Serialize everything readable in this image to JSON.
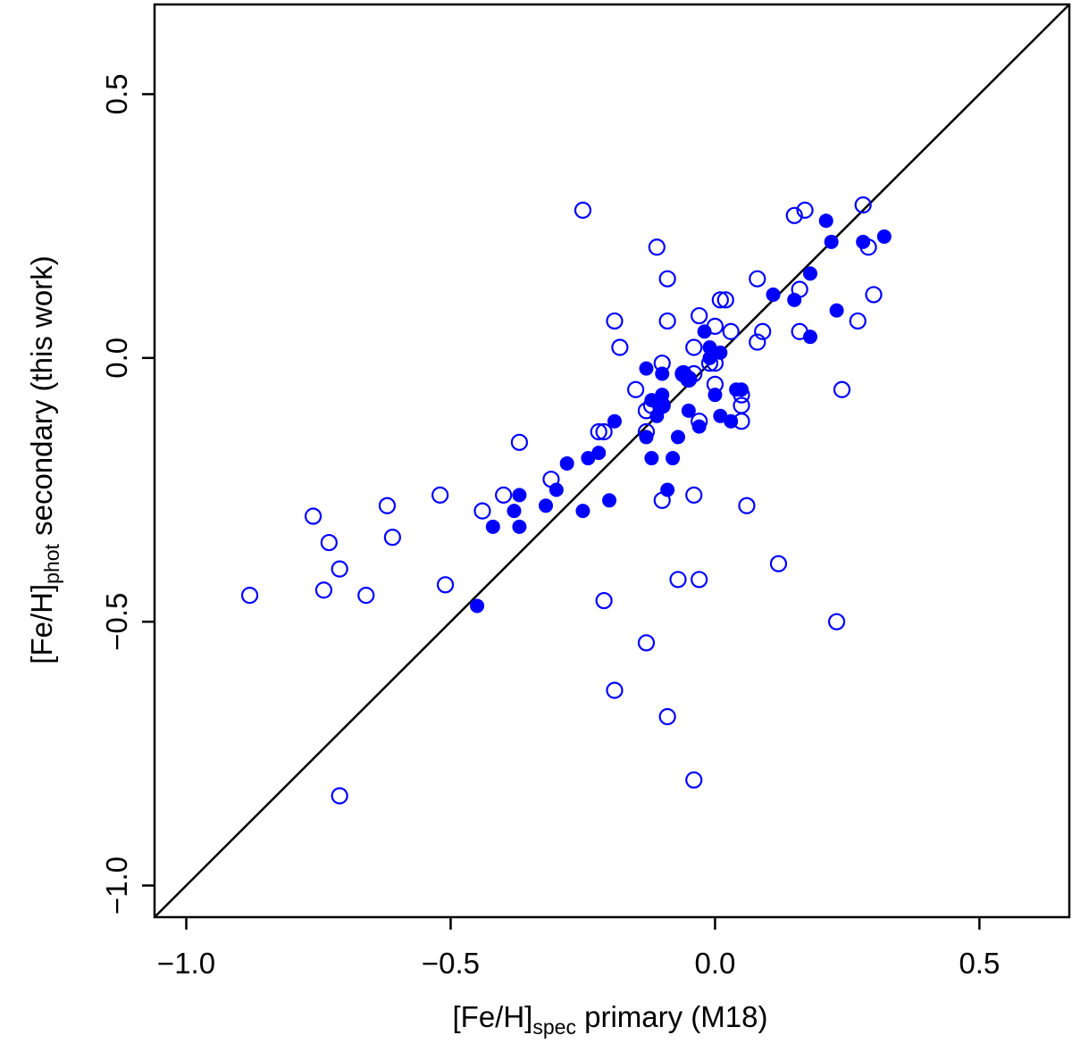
{
  "chart_data": {
    "type": "scatter",
    "xlabel": {
      "main": "[Fe/H]",
      "sub": "spec",
      "rest": " primary (M18)"
    },
    "ylabel": {
      "main": "[Fe/H]",
      "sub": "phot",
      "rest": " secondary (this work)"
    },
    "xlim": [
      -1.06,
      0.67
    ],
    "ylim": [
      -1.06,
      0.67
    ],
    "xticks": [
      -1.0,
      -0.5,
      0.0,
      0.5
    ],
    "yticks": [
      -1.0,
      -0.5,
      0.0,
      0.5
    ],
    "xtick_labels": [
      "−1.0",
      "−0.5",
      "0.0",
      "0.5"
    ],
    "ytick_labels": [
      "−1.0",
      "−0.5",
      "0.0",
      "0.5"
    ],
    "point_color": "#0000ff",
    "reference_line": {
      "type": "identity",
      "color": "#000000"
    },
    "series": [
      {
        "name": "filled",
        "marker": "filled-circle",
        "points": [
          [
            0.21,
            0.26
          ],
          [
            0.22,
            0.22
          ],
          [
            0.32,
            0.23
          ],
          [
            0.28,
            0.22
          ],
          [
            0.18,
            0.16
          ],
          [
            0.11,
            0.12
          ],
          [
            0.15,
            0.11
          ],
          [
            0.23,
            0.09
          ],
          [
            0.18,
            0.04
          ],
          [
            -0.02,
            0.05
          ],
          [
            -0.01,
            0.02
          ],
          [
            0.01,
            0.01
          ],
          [
            -0.01,
            0.0
          ],
          [
            -0.13,
            -0.02
          ],
          [
            -0.1,
            -0.03
          ],
          [
            -0.06,
            -0.03
          ],
          [
            -0.05,
            -0.04
          ],
          [
            0.04,
            -0.06
          ],
          [
            0.05,
            -0.06
          ],
          [
            -0.1,
            -0.07
          ],
          [
            0.0,
            -0.07
          ],
          [
            -0.12,
            -0.08
          ],
          [
            -0.1,
            -0.09
          ],
          [
            -0.05,
            -0.1
          ],
          [
            -0.11,
            -0.11
          ],
          [
            0.01,
            -0.11
          ],
          [
            0.03,
            -0.12
          ],
          [
            -0.13,
            -0.15
          ],
          [
            -0.19,
            -0.12
          ],
          [
            -0.03,
            -0.13
          ],
          [
            -0.07,
            -0.15
          ],
          [
            -0.12,
            -0.19
          ],
          [
            -0.08,
            -0.19
          ],
          [
            -0.22,
            -0.18
          ],
          [
            -0.24,
            -0.19
          ],
          [
            -0.28,
            -0.2
          ],
          [
            -0.3,
            -0.25
          ],
          [
            -0.37,
            -0.26
          ],
          [
            -0.09,
            -0.25
          ],
          [
            -0.2,
            -0.27
          ],
          [
            -0.32,
            -0.28
          ],
          [
            -0.38,
            -0.29
          ],
          [
            -0.25,
            -0.29
          ],
          [
            -0.42,
            -0.32
          ],
          [
            -0.37,
            -0.32
          ],
          [
            -0.45,
            -0.47
          ]
        ]
      },
      {
        "name": "open",
        "marker": "open-circle",
        "points": [
          [
            -0.25,
            0.28
          ],
          [
            0.28,
            0.29
          ],
          [
            0.17,
            0.28
          ],
          [
            0.15,
            0.27
          ],
          [
            -0.11,
            0.21
          ],
          [
            0.29,
            0.21
          ],
          [
            -0.09,
            0.15
          ],
          [
            0.08,
            0.15
          ],
          [
            0.16,
            0.13
          ],
          [
            0.3,
            0.12
          ],
          [
            0.01,
            0.11
          ],
          [
            0.02,
            0.11
          ],
          [
            -0.19,
            0.07
          ],
          [
            -0.09,
            0.07
          ],
          [
            -0.03,
            0.08
          ],
          [
            0.27,
            0.07
          ],
          [
            0.0,
            0.06
          ],
          [
            0.09,
            0.05
          ],
          [
            0.16,
            0.05
          ],
          [
            0.03,
            0.05
          ],
          [
            0.08,
            0.03
          ],
          [
            -0.18,
            0.02
          ],
          [
            -0.04,
            0.02
          ],
          [
            -0.01,
            -0.01
          ],
          [
            0.0,
            -0.01
          ],
          [
            -0.1,
            -0.01
          ],
          [
            -0.06,
            -0.03
          ],
          [
            -0.04,
            -0.03
          ],
          [
            -0.05,
            -0.04
          ],
          [
            0.0,
            -0.05
          ],
          [
            -0.15,
            -0.06
          ],
          [
            0.24,
            -0.06
          ],
          [
            0.05,
            -0.07
          ],
          [
            -0.12,
            -0.09
          ],
          [
            0.05,
            -0.09
          ],
          [
            -0.1,
            -0.09
          ],
          [
            -0.13,
            -0.1
          ],
          [
            -0.03,
            -0.12
          ],
          [
            0.05,
            -0.12
          ],
          [
            -0.13,
            -0.14
          ],
          [
            -0.22,
            -0.14
          ],
          [
            -0.21,
            -0.14
          ],
          [
            -0.37,
            -0.16
          ],
          [
            -0.31,
            -0.23
          ],
          [
            -0.52,
            -0.26
          ],
          [
            -0.4,
            -0.26
          ],
          [
            -0.04,
            -0.26
          ],
          [
            -0.1,
            -0.27
          ],
          [
            -0.62,
            -0.28
          ],
          [
            0.06,
            -0.28
          ],
          [
            -0.44,
            -0.29
          ],
          [
            -0.76,
            -0.3
          ],
          [
            -0.61,
            -0.34
          ],
          [
            -0.73,
            -0.35
          ],
          [
            -0.71,
            -0.4
          ],
          [
            0.12,
            -0.39
          ],
          [
            -0.07,
            -0.42
          ],
          [
            -0.03,
            -0.42
          ],
          [
            -0.51,
            -0.43
          ],
          [
            -0.74,
            -0.44
          ],
          [
            -0.88,
            -0.45
          ],
          [
            -0.66,
            -0.45
          ],
          [
            -0.21,
            -0.46
          ],
          [
            0.23,
            -0.5
          ],
          [
            -0.13,
            -0.54
          ],
          [
            -0.19,
            -0.63
          ],
          [
            -0.09,
            -0.68
          ],
          [
            -0.04,
            -0.8
          ],
          [
            -0.71,
            -0.83
          ]
        ]
      }
    ]
  }
}
